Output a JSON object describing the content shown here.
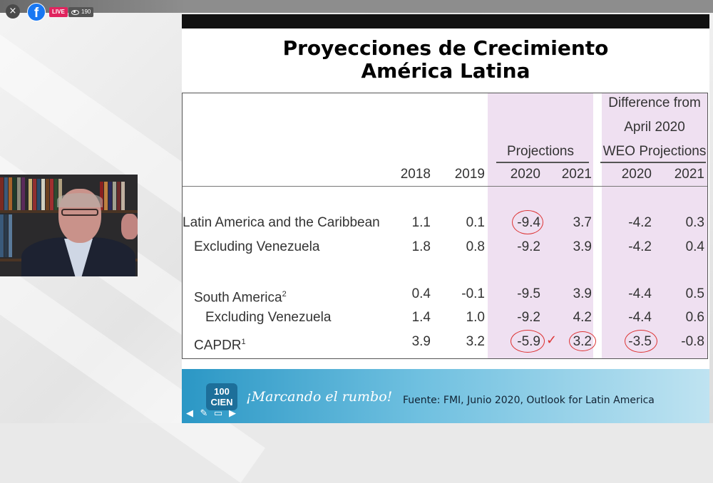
{
  "stream": {
    "live_label": "LIVE",
    "viewer_count": "190",
    "close_glyph": "×",
    "brand_glyph": "f"
  },
  "slide": {
    "title_line1": "Proyecciones de Crecimiento",
    "title_line2": "América Latina",
    "table": {
      "group_headers": {
        "projections": "Projections",
        "difference_line1": "Difference from",
        "difference_line2": "April 2020",
        "difference_line3": "WEO Projections"
      },
      "year_headers": [
        "2018",
        "2019",
        "2020",
        "2021",
        "2020",
        "2021"
      ],
      "rows": [
        {
          "label": "Latin America and the Caribbean",
          "sup": "",
          "values": [
            "1.1",
            "0.1",
            "-9.4",
            "3.7",
            "-4.2",
            "0.3"
          ]
        },
        {
          "label": "Excluding Venezuela",
          "sup": "",
          "values": [
            "1.8",
            "0.8",
            "-9.2",
            "3.9",
            "-4.2",
            "0.4"
          ]
        },
        {
          "label": "South America",
          "sup": "2",
          "values": [
            "0.4",
            "-0.1",
            "-9.5",
            "3.9",
            "-4.4",
            "0.5"
          ]
        },
        {
          "label": "Excluding Venezuela",
          "sup": "",
          "values": [
            "1.4",
            "1.0",
            "-9.2",
            "4.2",
            "-4.4",
            "0.6"
          ]
        },
        {
          "label": "CAPDR",
          "sup": "1",
          "values": [
            "3.9",
            "3.2",
            "-5.9",
            "3.2",
            "-3.5",
            "-0.8"
          ]
        }
      ]
    },
    "annotations": {
      "check_glyph": "✓"
    },
    "footer": {
      "logo_line1": "100",
      "logo_line2": "CIEN",
      "slogan": "¡Marcando el rumbo!",
      "source": "Fuente: FMI, Junio 2020, Outlook for Latin America"
    }
  },
  "colors": {
    "projection_shade": "#efe0f1",
    "annotation_red": "#dd3333",
    "footer_blue": "#2b97c5"
  }
}
